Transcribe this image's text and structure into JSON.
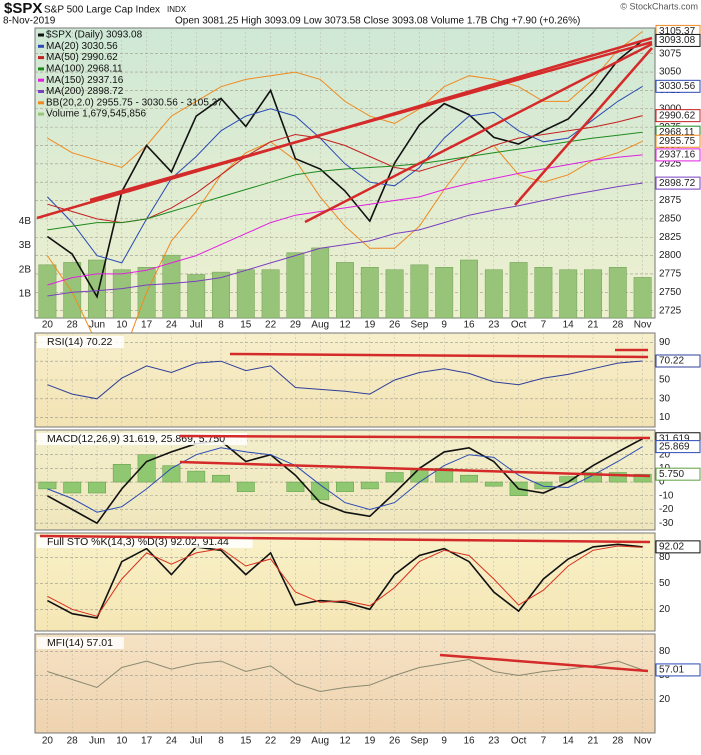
{
  "header": {
    "symbol": "$SPX",
    "name": "S&P 500 Large Cap Index",
    "exchange": "INDX",
    "date": "8-Nov-2019",
    "quote": "Open 3081.25 High 3093.09 Low 3073.58 Close 3093.08 Volume 1.7B Chg +7.90 (+0.26%)",
    "credit": "© StockCharts.com"
  },
  "chart_data": [
    {
      "type": "line",
      "categories": [
        "20",
        "28",
        "Jun",
        "10",
        "17",
        "24",
        "Jul",
        "8",
        "15",
        "22",
        "29",
        "Aug",
        "12",
        "19",
        "26",
        "Sep",
        "9",
        "16",
        "23",
        "Oct",
        "7",
        "14",
        "21",
        "28",
        "Nov"
      ],
      "series": [
        {
          "name": "$SPX (Daily) 3093.08",
          "color": "#111111",
          "width": 1.6,
          "values": [
            2826,
            2802,
            2744,
            2887,
            2950,
            2914,
            2990,
            3014,
            2976,
            3025,
            2932,
            2918,
            2888,
            2847,
            2926,
            2978,
            3007,
            2992,
            2961,
            2952,
            2970,
            2986,
            3022,
            3066,
            3093.08
          ]
        },
        {
          "name": "MA(20) 3030.56",
          "color": "#2a4bb5",
          "width": 1,
          "values": [
            2880,
            2845,
            2800,
            2790,
            2850,
            2905,
            2935,
            2970,
            2990,
            3000,
            2990,
            2960,
            2925,
            2900,
            2895,
            2920,
            2960,
            2990,
            2995,
            2970,
            2955,
            2960,
            2985,
            3010,
            3030.56
          ]
        },
        {
          "name": "MA(50) 2990.62",
          "color": "#c42020",
          "width": 1,
          "values": [
            2870,
            2860,
            2850,
            2845,
            2850,
            2865,
            2885,
            2910,
            2935,
            2955,
            2965,
            2960,
            2950,
            2935,
            2920,
            2915,
            2925,
            2935,
            2950,
            2960,
            2965,
            2970,
            2975,
            2982,
            2990.62
          ]
        },
        {
          "name": "MA(100) 2968.11",
          "color": "#1e8a1e",
          "width": 1,
          "values": [
            2835,
            2840,
            2845,
            2845,
            2850,
            2860,
            2870,
            2880,
            2890,
            2900,
            2910,
            2915,
            2918,
            2920,
            2922,
            2925,
            2930,
            2935,
            2940,
            2945,
            2950,
            2955,
            2960,
            2964,
            2968.11
          ]
        },
        {
          "name": "MA(150) 2937.16",
          "color": "#e020e0",
          "width": 1,
          "values": [
            2760,
            2770,
            2775,
            2775,
            2780,
            2790,
            2800,
            2815,
            2830,
            2845,
            2855,
            2860,
            2865,
            2870,
            2875,
            2880,
            2890,
            2898,
            2905,
            2912,
            2918,
            2924,
            2930,
            2934,
            2937.16
          ]
        },
        {
          "name": "MA(200) 2898.72",
          "color": "#7a3fc0",
          "width": 1,
          "values": [
            2745,
            2750,
            2752,
            2755,
            2760,
            2762,
            2765,
            2770,
            2780,
            2790,
            2800,
            2810,
            2815,
            2820,
            2830,
            2835,
            2845,
            2855,
            2862,
            2868,
            2875,
            2882,
            2888,
            2894,
            2898.72
          ]
        }
      ],
      "band": {
        "name": "BB(20,2.0) 2955.75 - 3030.56 - 3105.37",
        "color": "#ef8a1f",
        "upper": [
          2960,
          2940,
          2930,
          2920,
          2950,
          2990,
          3010,
          3030,
          3040,
          3045,
          3050,
          3040,
          3010,
          2990,
          2980,
          3000,
          3030,
          3045,
          3040,
          3030,
          3010,
          3010,
          3040,
          3080,
          3105.37
        ],
        "lower": [
          2800,
          2750,
          2680,
          2660,
          2750,
          2820,
          2860,
          2910,
          2940,
          2955,
          2930,
          2880,
          2840,
          2810,
          2810,
          2840,
          2890,
          2935,
          2950,
          2910,
          2900,
          2910,
          2930,
          2940,
          2955.75
        ]
      },
      "volume": {
        "name": "Volume 1,679,545,856",
        "color": "#98c47a",
        "values": [
          2200000000,
          2300000000,
          2400000000,
          2000000000,
          2100000000,
          2600000000,
          1800000000,
          1900000000,
          2000000000,
          2000000000,
          2700000000,
          2900000000,
          2300000000,
          2100000000,
          2000000000,
          2200000000,
          2100000000,
          2400000000,
          2000000000,
          2300000000,
          2100000000,
          2000000000,
          2000000000,
          2100000000,
          1679545856
        ],
        "ylim": [
          0,
          12000000000
        ],
        "yticks": [
          {
            "value": 1000000000,
            "label": "1B"
          },
          {
            "value": 2000000000,
            "label": "2B"
          },
          {
            "value": 3000000000,
            "label": "3B"
          },
          {
            "value": 4000000000,
            "label": "4B"
          }
        ]
      },
      "ylim": [
        2715,
        3110
      ],
      "yticks": [
        2725,
        2750,
        2775,
        2800,
        2825,
        2850,
        2875,
        2900,
        2925,
        2950,
        2975,
        3000,
        3025,
        3050,
        3075
      ],
      "tags": [
        {
          "value": 3105.37,
          "color": "#ef8a1f"
        },
        {
          "value": 3093.08,
          "color": "#111111"
        },
        {
          "value": 3030.56,
          "color": "#2a4bb5"
        },
        {
          "value": 2990.62,
          "color": "#c42020"
        },
        {
          "value": 2968.11,
          "color": "#1e8a1e"
        },
        {
          "value": 2955.75,
          "color": "#ef8a1f"
        },
        {
          "value": 2937.16,
          "color": "#e020e0"
        },
        {
          "value": 2898.72,
          "color": "#7a3fc0"
        }
      ],
      "grid": true
    },
    {
      "type": "line",
      "title": "RSI(14) 70.22",
      "series": [
        {
          "name": "RSI(14)",
          "color": "#2e3f9a",
          "width": 1,
          "values": [
            45,
            35,
            30,
            52,
            65,
            58,
            68,
            70,
            60,
            65,
            42,
            40,
            38,
            35,
            50,
            58,
            62,
            57,
            48,
            45,
            52,
            56,
            62,
            68,
            70.22
          ]
        }
      ],
      "ylim": [
        0,
        100
      ],
      "yticks": [
        10,
        30,
        50,
        70,
        90
      ],
      "tags": [
        {
          "value": 70.22,
          "color": "#2e3f9a"
        }
      ],
      "grid": true
    },
    {
      "type": "macd",
      "title": "MACD(12,26,9) 31.619, 25.869, 5.750",
      "series": [
        {
          "name": "MACD",
          "color": "#111111",
          "width": 1.6,
          "values": [
            -10,
            -20,
            -30,
            -5,
            15,
            22,
            28,
            30,
            15,
            20,
            5,
            -15,
            -22,
            -25,
            -8,
            10,
            22,
            25,
            15,
            -5,
            -8,
            0,
            12,
            22,
            31.619
          ]
        },
        {
          "name": "Signal",
          "color": "#2a4bb5",
          "width": 1,
          "values": [
            -5,
            -12,
            -22,
            -18,
            -5,
            10,
            20,
            25,
            22,
            20,
            12,
            -2,
            -15,
            -20,
            -15,
            0,
            12,
            20,
            18,
            5,
            -3,
            -4,
            5,
            15,
            25.869
          ]
        }
      ],
      "histogram": {
        "color": "#8fc870",
        "values": [
          -5,
          -8,
          -8,
          13,
          20,
          12,
          8,
          5,
          -7,
          0,
          -7,
          -13,
          -7,
          -5,
          7,
          10,
          10,
          5,
          -3,
          -10,
          -5,
          4,
          7,
          7,
          5.75
        ]
      },
      "ylim": [
        -35,
        38
      ],
      "yticks": [
        -30,
        -20,
        -10,
        0,
        10,
        20,
        30
      ],
      "tags": [
        {
          "value": 31.619,
          "color": "#111111"
        },
        {
          "value": 25.869,
          "color": "#2a4bb5"
        },
        {
          "value": 5.75,
          "label": "5.750",
          "color": "#5aa040"
        }
      ],
      "grid": true
    },
    {
      "type": "line",
      "title": "Full STO %K(14,3) %D(3) 92.02, 91.44",
      "series": [
        {
          "name": "%K",
          "color": "#111111",
          "width": 1.6,
          "values": [
            30,
            15,
            10,
            75,
            90,
            60,
            92,
            88,
            60,
            85,
            25,
            30,
            28,
            20,
            60,
            82,
            90,
            75,
            40,
            18,
            55,
            78,
            92,
            95,
            92.02
          ]
        },
        {
          "name": "%D",
          "color": "#d83020",
          "width": 1,
          "values": [
            35,
            20,
            12,
            55,
            85,
            72,
            85,
            90,
            70,
            78,
            40,
            28,
            30,
            24,
            45,
            75,
            88,
            82,
            55,
            25,
            42,
            70,
            88,
            93,
            91.44
          ]
        }
      ],
      "ylim": [
        -5,
        108
      ],
      "yticks": [
        20,
        50,
        80
      ],
      "tags": [
        {
          "value": 92.02,
          "color": "#111111"
        }
      ],
      "grid": true
    },
    {
      "type": "line",
      "title": "MFI(14) 57.01",
      "categories": [
        "20",
        "28",
        "Jun",
        "10",
        "17",
        "24",
        "Jul",
        "8",
        "15",
        "22",
        "29",
        "Aug",
        "12",
        "19",
        "26",
        "Sep",
        "9",
        "16",
        "23",
        "Oct",
        "7",
        "14",
        "21",
        "28",
        "Nov"
      ],
      "series": [
        {
          "name": "MFI(14)",
          "color": "#8a8a70",
          "width": 1,
          "values": [
            55,
            45,
            35,
            60,
            68,
            58,
            65,
            68,
            55,
            62,
            40,
            30,
            35,
            38,
            50,
            60,
            65,
            70,
            55,
            50,
            55,
            58,
            62,
            68,
            57.01
          ]
        }
      ],
      "ylim": [
        -22,
        102
      ],
      "yticks": [
        20,
        50,
        80
      ],
      "tags": [
        {
          "value": 57.01,
          "color": "#2a4bb5"
        }
      ],
      "grid": true
    }
  ]
}
